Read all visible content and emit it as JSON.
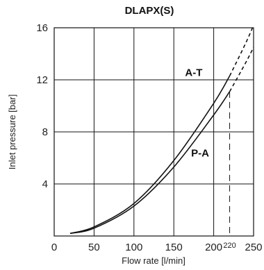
{
  "chart_data": {
    "type": "line",
    "title": "DLAPX(S)",
    "xlabel": "Flow rate [l/min]",
    "ylabel": "Inlet pressure [bar]",
    "xlim": [
      0,
      250
    ],
    "ylim": [
      0,
      16
    ],
    "x_ticks": [
      "0",
      "50",
      "100",
      "150",
      "200",
      "250"
    ],
    "y_ticks": [
      "4",
      "8",
      "12",
      "16"
    ],
    "grid": true,
    "max_flow_marker": {
      "x": 220,
      "label": "220"
    },
    "series": [
      {
        "name": "A-T",
        "solid_x": [
          20,
          50,
          100,
          150,
          200,
          220
        ],
        "solid_y": [
          0.2,
          0.7,
          2.5,
          5.8,
          10.2,
          12.3
        ],
        "dashed_x": [
          220,
          240,
          250
        ],
        "dashed_y": [
          12.3,
          14.8,
          16.2
        ]
      },
      {
        "name": "P-A",
        "solid_x": [
          20,
          50,
          100,
          150,
          200,
          220
        ],
        "solid_y": [
          0.2,
          0.6,
          2.3,
          5.3,
          9.3,
          11.1
        ],
        "dashed_x": [
          220,
          240,
          250
        ],
        "dashed_y": [
          11.1,
          13.3,
          14.5
        ]
      }
    ]
  }
}
